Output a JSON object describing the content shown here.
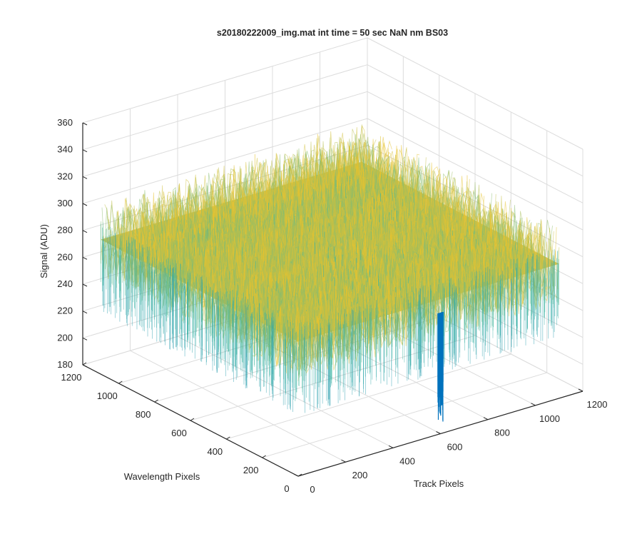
{
  "chart_data": {
    "type": "surface",
    "title": "s20180222009_img.mat int time = 50 sec  NaN nm BS03",
    "xlabel": "Track Pixels",
    "ylabel": "Wavelength Pixels",
    "zlabel": "Signal (ADU)",
    "xlim": [
      0,
      1200
    ],
    "ylim": [
      0,
      1200
    ],
    "zlim": [
      180,
      360
    ],
    "x_ticks": [
      0,
      200,
      400,
      600,
      800,
      1000,
      1200
    ],
    "y_ticks": [
      0,
      200,
      400,
      600,
      800,
      1000,
      1200
    ],
    "z_ticks": [
      180,
      200,
      220,
      240,
      260,
      280,
      300,
      320,
      340,
      360
    ],
    "grid": true,
    "colormap": "parula",
    "colors": {
      "low": "#0072BD",
      "mid": "#3DB8A0",
      "high": "#E8C22E",
      "axis": "#262626",
      "grid": "#DCDCDC"
    },
    "surface": {
      "x_extent": [
        0,
        1100
      ],
      "y_extent": [
        0,
        1100
      ],
      "mean_signal": 280,
      "noise_range": [
        240,
        330
      ],
      "dip": {
        "x": 600,
        "y": 0,
        "min_signal": 188
      }
    }
  }
}
